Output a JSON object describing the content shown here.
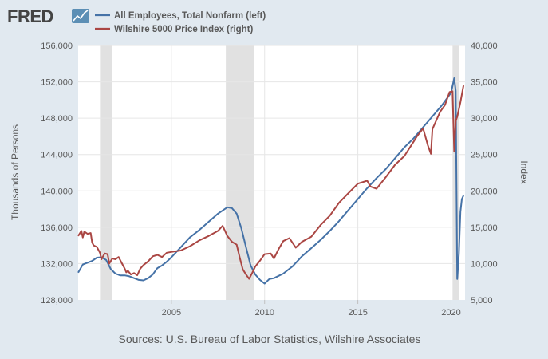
{
  "brand": {
    "logo_text": "FRED"
  },
  "source_text": "Sources: U.S. Bureau of Labor Statistics, Wilshire Associates",
  "colors": {
    "background": "#e1e9f0",
    "plot_background": "#ffffff",
    "recession": "#e1e1e1",
    "left_series": "#4572a7",
    "right_series": "#aa4643",
    "grid": "#e6e6e6",
    "text": "#595959"
  },
  "chart_data": {
    "type": "line",
    "x_range": [
      2000.0,
      2020.75
    ],
    "x_ticks": [
      "2005",
      "2010",
      "2015",
      "2020"
    ],
    "grid": true,
    "legend_position": "top-left",
    "recessions": [
      [
        2001.17,
        2001.83
      ],
      [
        2007.92,
        2009.42
      ],
      [
        2020.08,
        2020.42
      ]
    ],
    "left_axis": {
      "label": "Thousands of Persons",
      "ylim": [
        128000,
        156000
      ],
      "ticks": [
        "128,000",
        "132,000",
        "136,000",
        "140,000",
        "144,000",
        "148,000",
        "152,000",
        "156,000"
      ]
    },
    "right_axis": {
      "label": "Index",
      "ylim": [
        5000,
        40000
      ],
      "ticks": [
        "5,000",
        "10,000",
        "15,000",
        "20,000",
        "25,000",
        "30,000",
        "35,000",
        "40,000"
      ]
    },
    "series": [
      {
        "name": "All Employees, Total Nonfarm (left)",
        "axis": "left",
        "color": "#4572a7",
        "x": [
          2000.0,
          2000.25,
          2000.5,
          2000.75,
          2001.0,
          2001.25,
          2001.5,
          2001.75,
          2002.0,
          2002.25,
          2002.5,
          2002.75,
          2003.0,
          2003.25,
          2003.5,
          2003.75,
          2004.0,
          2004.25,
          2004.5,
          2004.75,
          2005.0,
          2005.5,
          2006.0,
          2006.5,
          2007.0,
          2007.5,
          2008.0,
          2008.25,
          2008.5,
          2008.75,
          2009.0,
          2009.25,
          2009.5,
          2009.75,
          2010.0,
          2010.25,
          2010.5,
          2011.0,
          2011.5,
          2012.0,
          2012.5,
          2013.0,
          2013.5,
          2014.0,
          2014.5,
          2015.0,
          2015.5,
          2016.0,
          2016.5,
          2017.0,
          2017.5,
          2018.0,
          2018.5,
          2019.0,
          2019.5,
          2020.0,
          2020.17,
          2020.25,
          2020.33,
          2020.42,
          2020.5,
          2020.58,
          2020.67
        ],
        "y": [
          131000,
          131900,
          132100,
          132300,
          132650,
          132700,
          132400,
          131400,
          130900,
          130700,
          130700,
          130600,
          130400,
          130200,
          130150,
          130400,
          130800,
          131500,
          131800,
          132200,
          132700,
          133800,
          134900,
          135700,
          136600,
          137500,
          138200,
          138100,
          137500,
          135900,
          133800,
          131800,
          130800,
          130200,
          129800,
          130300,
          130400,
          130900,
          131700,
          132800,
          133700,
          134600,
          135600,
          136700,
          137900,
          139100,
          140300,
          141400,
          142400,
          143600,
          144800,
          145800,
          147000,
          148200,
          149400,
          150800,
          152400,
          151000,
          130300,
          133100,
          137700,
          139100,
          139500
        ]
      },
      {
        "name": "Wilshire 5000 Price Index (right)",
        "axis": "right",
        "color": "#aa4643",
        "x": [
          2000.0,
          2000.17,
          2000.25,
          2000.33,
          2000.5,
          2000.67,
          2000.75,
          2000.83,
          2001.0,
          2001.17,
          2001.25,
          2001.42,
          2001.58,
          2001.67,
          2001.83,
          2002.0,
          2002.17,
          2002.33,
          2002.5,
          2002.58,
          2002.67,
          2002.83,
          2003.0,
          2003.17,
          2003.33,
          2003.5,
          2003.75,
          2004.0,
          2004.25,
          2004.5,
          2004.75,
          2005.0,
          2005.5,
          2006.0,
          2006.5,
          2007.0,
          2007.5,
          2007.75,
          2008.0,
          2008.25,
          2008.5,
          2008.67,
          2008.83,
          2009.0,
          2009.17,
          2009.33,
          2009.5,
          2009.75,
          2010.0,
          2010.33,
          2010.5,
          2010.75,
          2011.0,
          2011.33,
          2011.67,
          2012.0,
          2012.5,
          2013.0,
          2013.5,
          2014.0,
          2014.5,
          2015.0,
          2015.5,
          2015.67,
          2016.0,
          2016.5,
          2017.0,
          2017.5,
          2018.0,
          2018.17,
          2018.5,
          2018.75,
          2018.92,
          2019.0,
          2019.33,
          2019.42,
          2019.67,
          2019.92,
          2020.08,
          2020.17,
          2020.25,
          2020.33,
          2020.5,
          2020.67
        ],
        "y": [
          13800,
          14500,
          13600,
          14400,
          14100,
          14200,
          12900,
          12500,
          12300,
          11500,
          10600,
          11400,
          11300,
          10000,
          10700,
          10600,
          10900,
          10100,
          9300,
          8800,
          9000,
          8500,
          8700,
          8400,
          9300,
          9800,
          10300,
          11000,
          11200,
          10900,
          11500,
          11600,
          11800,
          12400,
          13200,
          13800,
          14500,
          15200,
          13800,
          13000,
          12600,
          10800,
          9200,
          8500,
          7900,
          8700,
          9600,
          10400,
          11300,
          11400,
          10700,
          12000,
          13100,
          13500,
          12200,
          13000,
          13700,
          15300,
          16600,
          18400,
          19700,
          21000,
          21400,
          20600,
          20300,
          21900,
          23600,
          24800,
          26800,
          27500,
          28600,
          26300,
          25100,
          28500,
          30400,
          30900,
          31800,
          33600,
          33700,
          25400,
          29600,
          30200,
          32200,
          34500
        ]
      }
    ]
  }
}
